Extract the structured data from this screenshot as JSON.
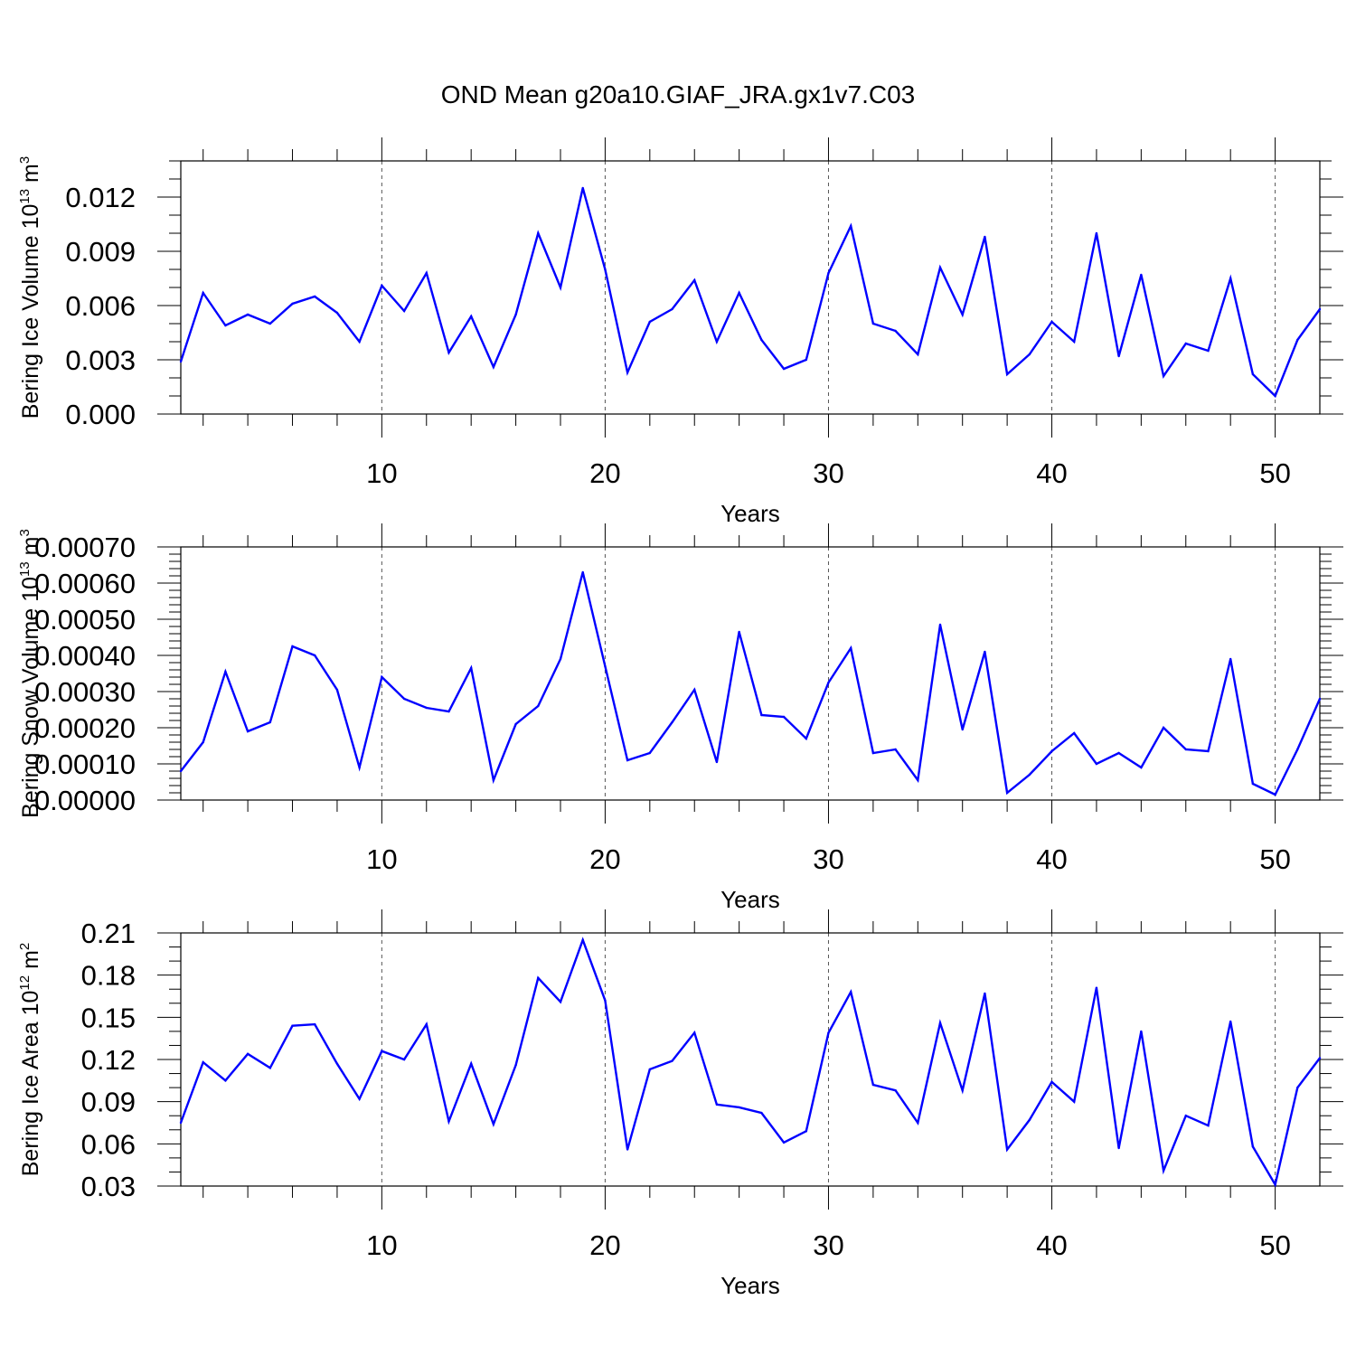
{
  "figure_title": "OND Mean g20a10.GIAF_JRA.gx1v7.C03",
  "series_color": "#0000ff",
  "chart_data": [
    {
      "type": "line",
      "ylabel_main": "Bering Ice Volume 10",
      "ylabel_exp": "13",
      "ylabel_unit": " m",
      "ylabel_unit_exp": "3",
      "xlabel": "Years",
      "xlim": [
        1,
        52
      ],
      "ylim": [
        0,
        0.014
      ],
      "ytick_values": [
        0,
        0.003,
        0.006,
        0.009,
        0.012
      ],
      "ytick_labels": [
        "0.000",
        "0.003",
        "0.006",
        "0.009",
        "0.012"
      ],
      "yminor_step": 0.001,
      "xtick_values": [
        10,
        20,
        30,
        40,
        50
      ],
      "xtick_labels": [
        "10",
        "20",
        "30",
        "40",
        "50"
      ],
      "x": [
        1,
        2,
        3,
        4,
        5,
        6,
        7,
        8,
        9,
        10,
        11,
        12,
        13,
        14,
        15,
        16,
        17,
        18,
        19,
        20,
        21,
        22,
        23,
        24,
        25,
        26,
        27,
        28,
        29,
        30,
        31,
        32,
        33,
        34,
        35,
        36,
        37,
        38,
        39,
        40,
        41,
        42,
        43,
        44,
        45,
        46,
        47,
        48,
        49,
        50,
        51,
        52
      ],
      "values": [
        0.0029,
        0.0067,
        0.0049,
        0.0055,
        0.005,
        0.0061,
        0.0065,
        0.0056,
        0.004,
        0.0071,
        0.0057,
        0.0078,
        0.0034,
        0.0054,
        0.0026,
        0.0055,
        0.01,
        0.007,
        0.0125,
        0.008,
        0.0023,
        0.0051,
        0.0058,
        0.0074,
        0.004,
        0.0067,
        0.0041,
        0.0025,
        0.003,
        0.0078,
        0.0104,
        0.005,
        0.0046,
        0.0033,
        0.0081,
        0.0055,
        0.0098,
        0.0022,
        0.0033,
        0.0051,
        0.004,
        0.01,
        0.0032,
        0.0077,
        0.0021,
        0.0039,
        0.0035,
        0.0075,
        0.0022,
        0.001,
        0.0041,
        0.0058
      ]
    },
    {
      "type": "line",
      "ylabel_main": "Bering Snow Volume 10",
      "ylabel_exp": "13",
      "ylabel_unit": " m",
      "ylabel_unit_exp": "3",
      "xlabel": "Years",
      "xlim": [
        1,
        52
      ],
      "ylim": [
        0,
        0.0007
      ],
      "ytick_values": [
        0,
        0.0001,
        0.0002,
        0.0003,
        0.0004,
        0.0005,
        0.0006,
        0.0007
      ],
      "ytick_labels": [
        "0.00000",
        "0.00010",
        "0.00020",
        "0.00030",
        "0.00040",
        "0.00050",
        "0.00060",
        "0.00070"
      ],
      "yminor_step": 2e-05,
      "xtick_values": [
        10,
        20,
        30,
        40,
        50
      ],
      "xtick_labels": [
        "10",
        "20",
        "30",
        "40",
        "50"
      ],
      "x": [
        1,
        2,
        3,
        4,
        5,
        6,
        7,
        8,
        9,
        10,
        11,
        12,
        13,
        14,
        15,
        16,
        17,
        18,
        19,
        20,
        21,
        22,
        23,
        24,
        25,
        26,
        27,
        28,
        29,
        30,
        31,
        32,
        33,
        34,
        35,
        36,
        37,
        38,
        39,
        40,
        41,
        42,
        43,
        44,
        45,
        46,
        47,
        48,
        49,
        50,
        51,
        52
      ],
      "values": [
        8e-05,
        0.00016,
        0.000355,
        0.00019,
        0.000215,
        0.000425,
        0.0004,
        0.000305,
        9e-05,
        0.00034,
        0.00028,
        0.000255,
        0.000245,
        0.000365,
        5.5e-05,
        0.00021,
        0.00026,
        0.00039,
        0.00063,
        0.00037,
        0.00011,
        0.00013,
        0.000215,
        0.000305,
        0.000105,
        0.000465,
        0.000235,
        0.00023,
        0.00017,
        0.000325,
        0.00042,
        0.00013,
        0.00014,
        5.5e-05,
        0.000485,
        0.000195,
        0.00041,
        2e-05,
        7e-05,
        0.000135,
        0.000185,
        0.0001,
        0.00013,
        9e-05,
        0.0002,
        0.00014,
        0.000135,
        0.00039,
        4.5e-05,
        1.5e-05,
        0.00014,
        0.00028
      ]
    },
    {
      "type": "line",
      "ylabel_main": "Bering Ice Area 10",
      "ylabel_exp": "12",
      "ylabel_unit": " m",
      "ylabel_unit_exp": "2",
      "xlabel": "Years",
      "xlim": [
        1,
        52
      ],
      "ylim": [
        0.03,
        0.21
      ],
      "ytick_values": [
        0.03,
        0.06,
        0.09,
        0.12,
        0.15,
        0.18,
        0.21
      ],
      "ytick_labels": [
        "0.03",
        "0.06",
        "0.09",
        "0.12",
        "0.15",
        "0.18",
        "0.21"
      ],
      "yminor_step": 0.01,
      "xtick_values": [
        10,
        20,
        30,
        40,
        50
      ],
      "xtick_labels": [
        "10",
        "20",
        "30",
        "40",
        "50"
      ],
      "x": [
        1,
        2,
        3,
        4,
        5,
        6,
        7,
        8,
        9,
        10,
        11,
        12,
        13,
        14,
        15,
        16,
        17,
        18,
        19,
        20,
        21,
        22,
        23,
        24,
        25,
        26,
        27,
        28,
        29,
        30,
        31,
        32,
        33,
        34,
        35,
        36,
        37,
        38,
        39,
        40,
        41,
        42,
        43,
        44,
        45,
        46,
        47,
        48,
        49,
        50,
        51,
        52
      ],
      "values": [
        0.075,
        0.118,
        0.105,
        0.124,
        0.114,
        0.144,
        0.145,
        0.117,
        0.092,
        0.126,
        0.12,
        0.145,
        0.076,
        0.117,
        0.074,
        0.116,
        0.178,
        0.161,
        0.205,
        0.162,
        0.056,
        0.113,
        0.119,
        0.139,
        0.088,
        0.086,
        0.082,
        0.061,
        0.069,
        0.139,
        0.168,
        0.102,
        0.098,
        0.075,
        0.146,
        0.098,
        0.167,
        0.056,
        0.077,
        0.104,
        0.09,
        0.171,
        0.057,
        0.14,
        0.041,
        0.08,
        0.073,
        0.147,
        0.058,
        0.031,
        0.1,
        0.121
      ]
    }
  ]
}
